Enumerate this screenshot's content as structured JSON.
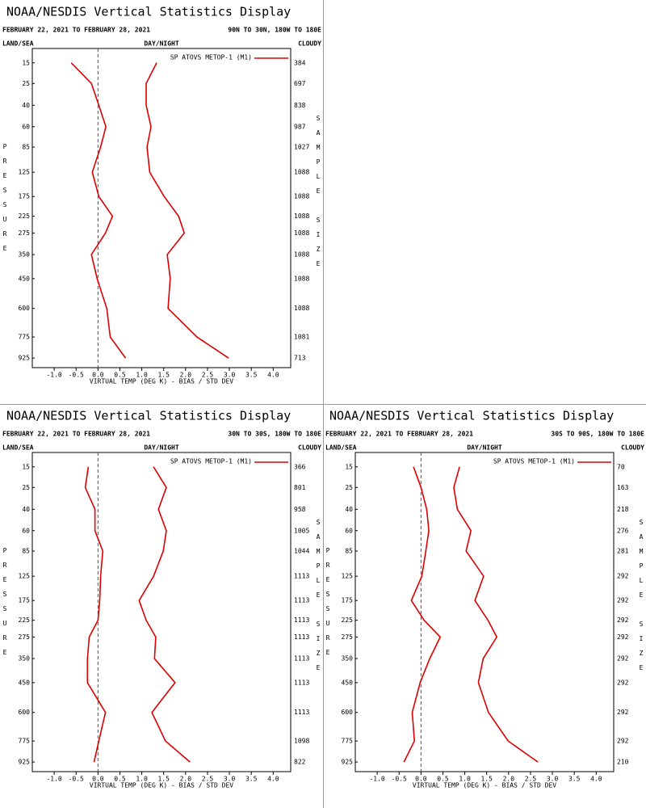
{
  "chart_data": [
    {
      "type": "line",
      "title": "NOAA/NESDIS Vertical Statistics Display",
      "subtitle": "FEBRUARY 22, 2021 TO FEBRUARY 28, 2021",
      "region": "90N TO 30N, 180W TO 180E",
      "land_sea": "LAND/SEA",
      "day_night": "DAY/NIGHT",
      "cloudy": "CLOUDY",
      "x_label": "VIRTUAL TEMP (DEG K) - BIAS / STD DEV",
      "y_label": "PRESSURE",
      "y2_label": "SAMPLE SIZE",
      "y": [
        15,
        25,
        40,
        60,
        85,
        125,
        175,
        225,
        275,
        350,
        450,
        600,
        775,
        925
      ],
      "sample_size": [
        384,
        697,
        838,
        987,
        1027,
        1088,
        1088,
        1088,
        1088,
        1088,
        1088,
        1088,
        1081,
        713
      ],
      "series": [
        {
          "name": "SP ATOVS METOP-1 (M1)",
          "color": "#dd0000",
          "bias": [
            -0.61,
            -0.15,
            0.02,
            0.18,
            0.06,
            -0.13,
            0.02,
            0.33,
            0.17,
            -0.15,
            -0.02,
            0.2,
            0.28,
            0.63
          ],
          "std_dev": [
            1.34,
            1.1,
            1.1,
            1.21,
            1.12,
            1.18,
            1.51,
            1.84,
            1.97,
            1.58,
            1.65,
            1.6,
            2.26,
            2.98
          ]
        }
      ],
      "xlim": [
        -1.5,
        4.4
      ],
      "ylim": [
        10,
        1000
      ],
      "xticks": [
        {
          "value": -1,
          "label": "-1.0"
        },
        -0.5,
        {
          "value": 0,
          "label": "0.0"
        },
        0.5,
        {
          "value": 1,
          "label": "1.0"
        },
        1.5,
        {
          "value": 2,
          "label": "2.0"
        },
        2.5,
        {
          "value": 3,
          "label": "3.0"
        },
        3.5,
        {
          "value": 4,
          "label": "4.0"
        }
      ]
    },
    {
      "type": "line",
      "title": "NOAA/NESDIS Vertical Statistics Display",
      "subtitle": "FEBRUARY 22, 2021 TO FEBRUARY 28, 2021",
      "region": "30N TO 30S, 180W TO 180E",
      "land_sea": "LAND/SEA",
      "day_night": "DAY/NIGHT",
      "cloudy": "CLOUDY",
      "x_label": "VIRTUAL TEMP (DEG K) - BIAS / STD DEV",
      "y_label": "PRESSURE",
      "y2_label": "SAMPLE SIZE",
      "y": [
        15,
        25,
        40,
        60,
        85,
        125,
        175,
        225,
        275,
        350,
        450,
        600,
        775,
        925
      ],
      "sample_size": [
        366,
        801,
        958,
        1005,
        1044,
        1113,
        1113,
        1113,
        1113,
        1113,
        1113,
        1113,
        1098,
        822
      ],
      "series": [
        {
          "name": "SP ATOVS METOP-1 (M1)",
          "color": "#dd0000",
          "bias": [
            -0.22,
            -0.29,
            -0.07,
            -0.07,
            0.11,
            0.06,
            0.04,
            0,
            -0.2,
            -0.24,
            -0.24,
            0.17,
            0.02,
            -0.09
          ],
          "std_dev": [
            1.27,
            1.56,
            1.38,
            1.56,
            1.49,
            1.27,
            0.94,
            1.1,
            1.32,
            1.29,
            1.76,
            1.23,
            1.54,
            2.1
          ]
        }
      ],
      "xlim": [
        -1.5,
        4.4
      ],
      "ylim": [
        10,
        1000
      ],
      "xticks": [
        {
          "value": -1,
          "label": "-1.0"
        },
        -0.5,
        {
          "value": 0,
          "label": "0.0"
        },
        0.5,
        {
          "value": 1,
          "label": "1.0"
        },
        1.5,
        {
          "value": 2,
          "label": "2.0"
        },
        2.5,
        {
          "value": 3,
          "label": "3.0"
        },
        3.5,
        {
          "value": 4,
          "label": "4.0"
        }
      ]
    },
    {
      "type": "line",
      "title": "NOAA/NESDIS Vertical Statistics Display",
      "subtitle": "FEBRUARY 22, 2021 TO FEBRUARY 28, 2021",
      "region": "30S TO 90S, 180W TO 180E",
      "land_sea": "LAND/SEA",
      "day_night": "DAY/NIGHT",
      "cloudy": "CLOUDY",
      "x_label": "VIRTUAL TEMP (DEG K) - BIAS / STD DEV",
      "y_label": "PRESSURE",
      "y2_label": "SAMPLE SIZE",
      "y": [
        15,
        25,
        40,
        60,
        85,
        125,
        175,
        225,
        275,
        350,
        450,
        600,
        775,
        925
      ],
      "sample_size": [
        70,
        163,
        218,
        276,
        281,
        292,
        292,
        292,
        292,
        292,
        292,
        292,
        292,
        210
      ],
      "series": [
        {
          "name": "SP ATOVS METOP-1 (M1)",
          "color": "#dd0000",
          "bias": [
            -0.17,
            0,
            0.13,
            0.18,
            0.11,
            0.02,
            -0.22,
            0.07,
            0.44,
            0.2,
            -0.02,
            -0.2,
            -0.15,
            -0.39
          ],
          "std_dev": [
            0.88,
            0.75,
            0.83,
            1.14,
            1.03,
            1.43,
            1.23,
            1.53,
            1.73,
            1.42,
            1.31,
            1.54,
            1.99,
            2.67
          ]
        }
      ],
      "xlim": [
        -1.5,
        4.4
      ],
      "ylim": [
        10,
        1000
      ],
      "xticks": [
        {
          "value": -1,
          "label": "-1.0"
        },
        -0.5,
        {
          "value": 0,
          "label": "0.0"
        },
        0.5,
        {
          "value": 1,
          "label": "1.0"
        },
        1.5,
        {
          "value": 2,
          "label": "2.0"
        },
        2.5,
        {
          "value": 3,
          "label": "3.0"
        },
        3.5,
        {
          "value": 4,
          "label": "4.0"
        }
      ]
    }
  ]
}
